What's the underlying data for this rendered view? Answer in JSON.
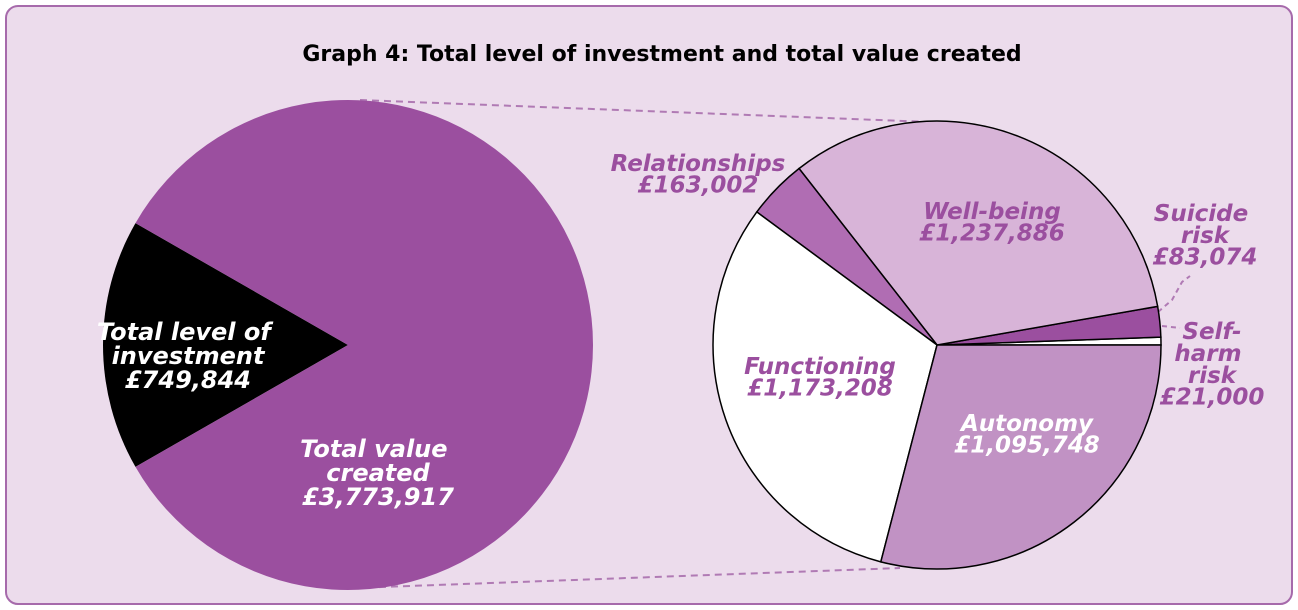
{
  "chart_data": [
    {
      "type": "pie",
      "title": "Graph 4: Total level of investment and total value created",
      "categories": [
        "Total level of investment",
        "Total value created"
      ],
      "values": [
        749844,
        3773917
      ],
      "value_labels": [
        "£749,844",
        "£3,773,917"
      ],
      "colors": [
        "#000000",
        "#9b4f9f"
      ]
    },
    {
      "type": "pie",
      "categories": [
        "Self-harm risk",
        "Suicide risk",
        "Well-being",
        "Relationships",
        "Functioning",
        "Autonomy"
      ],
      "values": [
        21000,
        83074,
        1237886,
        163002,
        1173208,
        1095748
      ],
      "value_labels": [
        "£21,000",
        "£83,074",
        "£1,237,886",
        "£163,002",
        "£1,173,208",
        "£1,095,748"
      ],
      "colors": [
        "#ffffff",
        "#9b4f9f",
        "#d8b4d8",
        "#b06db3",
        "#ffffff",
        "#c192c4"
      ]
    }
  ]
}
